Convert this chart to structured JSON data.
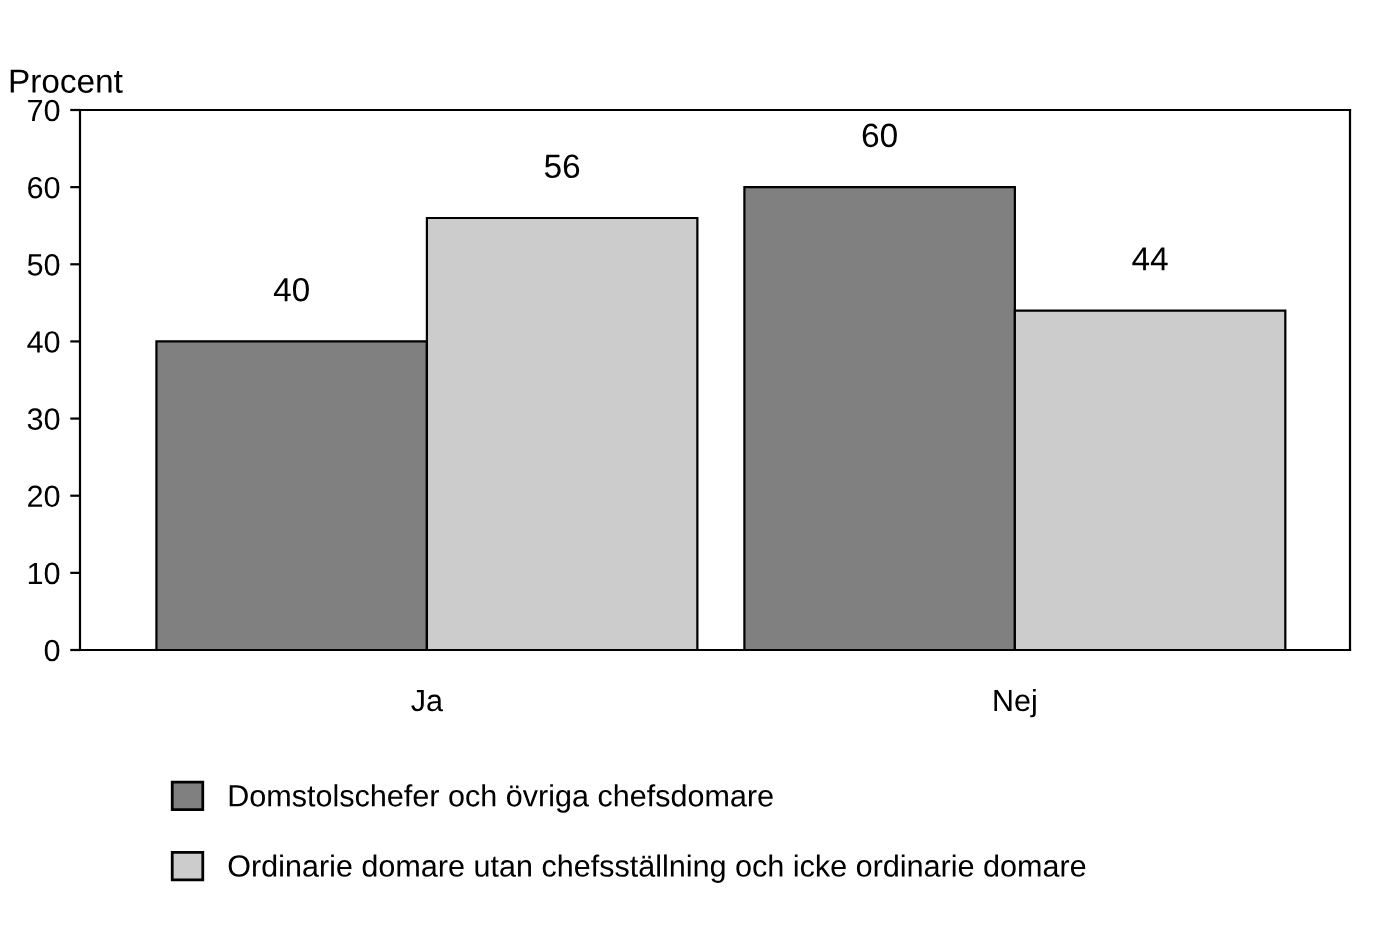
{
  "chart_data": {
    "type": "bar",
    "ylabel": "Procent",
    "categories": [
      "Ja",
      "Nej"
    ],
    "series": [
      {
        "name": "Domstolschefer och övriga chefsdomare",
        "color": "#808080",
        "values": [
          40,
          60
        ]
      },
      {
        "name": "Ordinarie domare utan chefsställning och icke ordinarie domare",
        "color": "#cccccc",
        "values": [
          56,
          44
        ]
      }
    ],
    "ylim": [
      0,
      70
    ],
    "yticks": [
      0,
      10,
      20,
      30,
      40,
      50,
      60,
      70
    ],
    "data_labels": true,
    "legend": "bottom",
    "grid": false
  }
}
